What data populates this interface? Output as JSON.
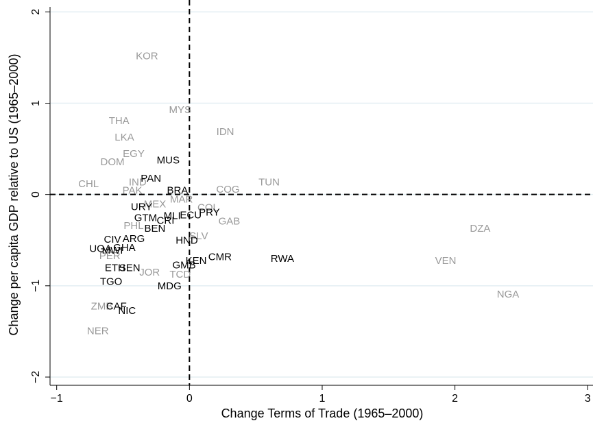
{
  "chart_data": {
    "type": "scatter",
    "xlabel": "Change Terms of Trade (1965–2000)",
    "ylabel": "Change per capita GDP relative to US (1965–2000)",
    "xlim": [
      -1.05,
      3.04
    ],
    "ylim": [
      -2.09,
      2.13
    ],
    "xticks": [
      {
        "value": -1,
        "label": "−1"
      },
      0,
      1,
      2,
      3
    ],
    "yticks": [
      {
        "value": -2,
        "label": "−2"
      },
      {
        "value": -1,
        "label": "−1"
      },
      0,
      1,
      2
    ],
    "grid": true,
    "reference_lines": {
      "x": 0,
      "y": 0
    },
    "points": [
      {
        "label": "KOR",
        "x": -0.32,
        "y": 1.51,
        "color": "#999999"
      },
      {
        "label": "MYS",
        "x": -0.07,
        "y": 0.92,
        "color": "#999999"
      },
      {
        "label": "IDN",
        "x": 0.27,
        "y": 0.68,
        "color": "#999999"
      },
      {
        "label": "THA",
        "x": -0.53,
        "y": 0.8,
        "color": "#999999"
      },
      {
        "label": "LKA",
        "x": -0.49,
        "y": 0.62,
        "color": "#999999"
      },
      {
        "label": "EGY",
        "x": -0.42,
        "y": 0.44,
        "color": "#999999"
      },
      {
        "label": "DOM",
        "x": -0.58,
        "y": 0.35,
        "color": "#999999"
      },
      {
        "label": "CHL",
        "x": -0.76,
        "y": 0.11,
        "color": "#999999"
      },
      {
        "label": "IND",
        "x": -0.39,
        "y": 0.13,
        "color": "#999999"
      },
      {
        "label": "PAK",
        "x": -0.43,
        "y": 0.04,
        "color": "#999999"
      },
      {
        "label": "TUN",
        "x": 0.6,
        "y": 0.13,
        "color": "#999999"
      },
      {
        "label": "COG",
        "x": 0.29,
        "y": 0.05,
        "color": "#999999"
      },
      {
        "label": "MEX",
        "x": -0.26,
        "y": -0.11,
        "color": "#999999"
      },
      {
        "label": "MAR",
        "x": -0.06,
        "y": -0.06,
        "color": "#999999"
      },
      {
        "label": "COL",
        "x": 0.14,
        "y": -0.15,
        "color": "#999999"
      },
      {
        "label": "GAB",
        "x": 0.3,
        "y": -0.3,
        "color": "#999999"
      },
      {
        "label": "SLV",
        "x": 0.07,
        "y": -0.46,
        "color": "#999999"
      },
      {
        "label": "PHL",
        "x": -0.42,
        "y": -0.35,
        "color": "#999999"
      },
      {
        "label": "PER",
        "x": -0.6,
        "y": -0.68,
        "color": "#999999"
      },
      {
        "label": "JOR",
        "x": -0.3,
        "y": -0.86,
        "color": "#999999"
      },
      {
        "label": "TCD",
        "x": -0.07,
        "y": -0.88,
        "color": "#999999"
      },
      {
        "label": "ZMB",
        "x": -0.66,
        "y": -1.23,
        "color": "#999999"
      },
      {
        "label": "NER",
        "x": -0.69,
        "y": -1.5,
        "color": "#999999"
      },
      {
        "label": "DZA",
        "x": 2.19,
        "y": -0.38,
        "color": "#999999"
      },
      {
        "label": "VEN",
        "x": 1.93,
        "y": -0.73,
        "color": "#999999"
      },
      {
        "label": "NGA",
        "x": 2.4,
        "y": -1.1,
        "color": "#999999"
      },
      {
        "label": "MUS",
        "x": -0.16,
        "y": 0.37,
        "color": "#000000"
      },
      {
        "label": "PAN",
        "x": -0.29,
        "y": 0.17,
        "color": "#000000"
      },
      {
        "label": "BRA",
        "x": -0.09,
        "y": 0.04,
        "color": "#000000"
      },
      {
        "label": "URY",
        "x": -0.36,
        "y": -0.14,
        "color": "#000000"
      },
      {
        "label": "GTM",
        "x": -0.33,
        "y": -0.26,
        "color": "#000000"
      },
      {
        "label": "MLI",
        "x": -0.13,
        "y": -0.24,
        "color": "#000000"
      },
      {
        "label": "ECU",
        "x": 0.01,
        "y": -0.23,
        "color": "#000000"
      },
      {
        "label": "PRY",
        "x": 0.15,
        "y": -0.2,
        "color": "#000000"
      },
      {
        "label": "CRI",
        "x": -0.18,
        "y": -0.29,
        "color": "#000000"
      },
      {
        "label": "BEN",
        "x": -0.26,
        "y": -0.38,
        "color": "#000000"
      },
      {
        "label": "ARG",
        "x": -0.42,
        "y": -0.49,
        "color": "#000000"
      },
      {
        "label": "CIV",
        "x": -0.58,
        "y": -0.5,
        "color": "#000000"
      },
      {
        "label": "GHA",
        "x": -0.49,
        "y": -0.59,
        "color": "#000000"
      },
      {
        "label": "UGA",
        "x": -0.67,
        "y": -0.6,
        "color": "#000000"
      },
      {
        "label": "MWI",
        "x": -0.58,
        "y": -0.62,
        "color": "#000000"
      },
      {
        "label": "HND",
        "x": -0.02,
        "y": -0.51,
        "color": "#000000"
      },
      {
        "label": "RWA",
        "x": 0.7,
        "y": -0.71,
        "color": "#000000"
      },
      {
        "label": "CMR",
        "x": 0.23,
        "y": -0.69,
        "color": "#000000"
      },
      {
        "label": "KEN",
        "x": 0.05,
        "y": -0.73,
        "color": "#000000"
      },
      {
        "label": "GMB",
        "x": -0.04,
        "y": -0.78,
        "color": "#000000"
      },
      {
        "label": "ETH",
        "x": -0.56,
        "y": -0.81,
        "color": "#000000"
      },
      {
        "label": "SEN",
        "x": -0.45,
        "y": -0.81,
        "color": "#000000"
      },
      {
        "label": "MDG",
        "x": -0.15,
        "y": -1.01,
        "color": "#000000"
      },
      {
        "label": "TGO",
        "x": -0.59,
        "y": -0.96,
        "color": "#000000"
      },
      {
        "label": "CAF",
        "x": -0.55,
        "y": -1.23,
        "color": "#000000"
      },
      {
        "label": "NIC",
        "x": -0.47,
        "y": -1.28,
        "color": "#000000"
      }
    ]
  }
}
